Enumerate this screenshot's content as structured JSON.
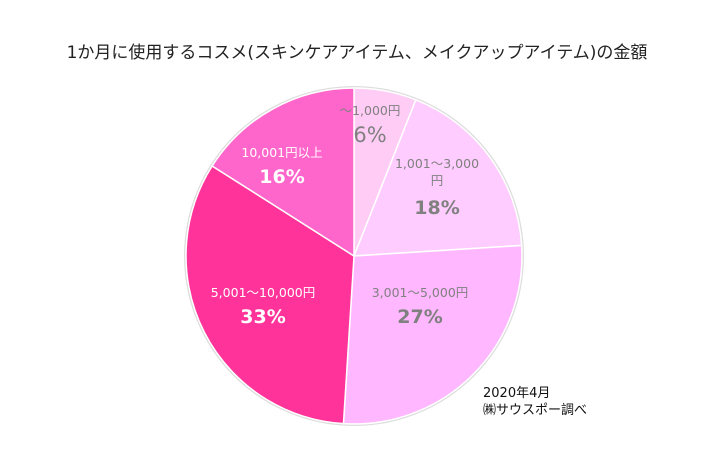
{
  "chart_data": {
    "type": "pie",
    "title": "1か月に使用するコスメ(スキンケアアイテム、メイクアップアイテム)の金額",
    "slices": [
      {
        "label": "～1,000円",
        "value": 6,
        "pct_label": "6%",
        "color": "#FFCCF5",
        "text_color": "#808080"
      },
      {
        "label": "1,001～3,000円",
        "label_line1": "1,001～3,000",
        "label_line2": "円",
        "value": 18,
        "pct_label": "18%",
        "color": "#FFCCFF",
        "text_color": "#808080"
      },
      {
        "label": "3,001～5,000円",
        "value": 27,
        "pct_label": "27%",
        "color": "#FFB8FF",
        "text_color": "#808080"
      },
      {
        "label": "5,001～10,000円",
        "value": 33,
        "pct_label": "33%",
        "color": "#FF3399",
        "text_color": "#FFFFFF"
      },
      {
        "label": "10,001円以上",
        "value": 16,
        "pct_label": "16%",
        "color": "#FF66CC",
        "text_color": "#FFFFFF"
      }
    ],
    "start": "top",
    "direction": "clockwise"
  },
  "note": {
    "date": "2020年4月",
    "source": "㈱サウスポー調べ"
  }
}
